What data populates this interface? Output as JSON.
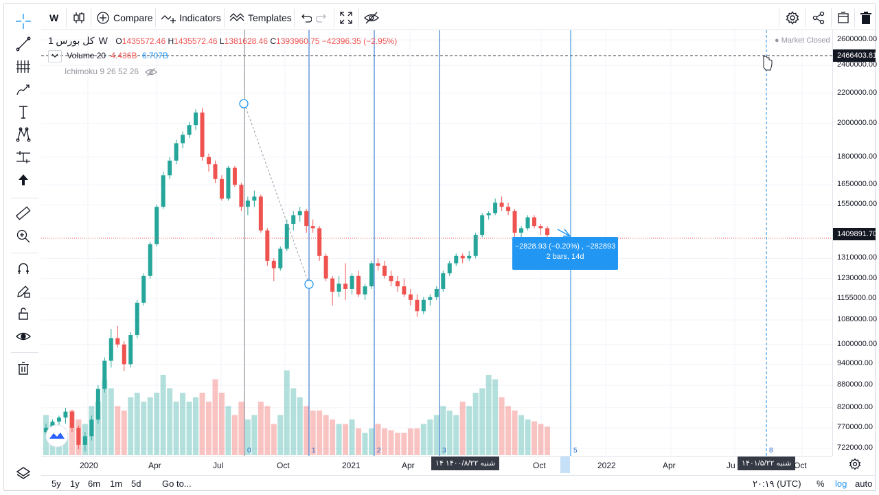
{
  "toolbar": {
    "interval": "W",
    "compare_label": "Compare",
    "indicators_label": "Indicators",
    "templates_label": "Templates"
  },
  "legend": {
    "symbol": "کل بورس",
    "interval": "1W",
    "open_label": "O",
    "open": "1435572.46",
    "high_label": "H",
    "high": "1435572.46",
    "low_label": "L",
    "low": "1381628.46",
    "close_label": "C",
    "close": "1393960.75",
    "change": "−42396.35 (−2.95%)",
    "volume_label": "Volume",
    "volume_len": "20",
    "volume_val": "4.436B",
    "volume_ma": "6.707B",
    "ichimoku": "Ichimoku 9 26 52 26",
    "market_status": "Market Closed"
  },
  "price_axis": {
    "labels": [
      "2600000.00",
      "2400000.00",
      "2200000.00",
      "2000000.00",
      "1800000.00",
      "1650000.00",
      "1550000.00",
      "1310000.00",
      "1230000.00",
      "1155000.00",
      "1080000.00",
      "1000000.00",
      "940000.00",
      "880000.00",
      "820000.00",
      "770000.00",
      "722000.00"
    ],
    "crosshair_price": "2466403.81",
    "last_price": "1409891.70"
  },
  "time_axis": {
    "labels": [
      "2020",
      "Apr",
      "Jul",
      "Oct",
      "2021",
      "Apr",
      "Oct",
      "2022",
      "Apr",
      "Ju",
      "Oct"
    ],
    "date_tag_1": "شنبه ۱۴۰۰/۸/۲۲ ۱۴",
    "date_tag_2": "شنبه ۱۴۰۱/۵/۲۲"
  },
  "cycle_lines": {
    "labels": [
      "0",
      "1",
      "2",
      "3",
      "5",
      "8"
    ]
  },
  "measure_tooltip": {
    "line1": "−2828.93 (−0.20%) , −282893",
    "line2": "2 bars, 14d"
  },
  "bottom_bar": {
    "ranges": [
      "5y",
      "1y",
      "6m",
      "1m",
      "5d"
    ],
    "goto": "Go to...",
    "time": "۲۰:۱۹ (UTC)",
    "percent": "%",
    "log": "log",
    "auto": "auto"
  },
  "colors": {
    "up": "#26a69a",
    "down": "#ef5350",
    "accent": "#2196f3"
  },
  "chart_data": {
    "type": "candlestick",
    "interval": "1W",
    "yscale": "log",
    "ylim": [
      700000,
      2650000
    ],
    "candles": [
      [
        760000,
        780000,
        750000,
        770000,
        0.45
      ],
      [
        770000,
        790000,
        760000,
        785000,
        0.35
      ],
      [
        785000,
        800000,
        770000,
        795000,
        0.3
      ],
      [
        795000,
        820000,
        780000,
        810000,
        0.25
      ],
      [
        810000,
        815000,
        760000,
        770000,
        0.5
      ],
      [
        770000,
        775000,
        720000,
        730000,
        0.4
      ],
      [
        730000,
        760000,
        715000,
        750000,
        0.35
      ],
      [
        750000,
        800000,
        740000,
        790000,
        0.55
      ],
      [
        790000,
        880000,
        780000,
        870000,
        0.6
      ],
      [
        870000,
        960000,
        860000,
        950000,
        0.85
      ],
      [
        950000,
        1050000,
        930000,
        1020000,
        0.75
      ],
      [
        1020000,
        1060000,
        990000,
        1000000,
        0.55
      ],
      [
        1000000,
        1010000,
        920000,
        940000,
        0.5
      ],
      [
        940000,
        1040000,
        930000,
        1030000,
        0.65
      ],
      [
        1030000,
        1150000,
        1020000,
        1140000,
        0.7
      ],
      [
        1140000,
        1250000,
        1130000,
        1240000,
        0.6
      ],
      [
        1240000,
        1380000,
        1230000,
        1370000,
        0.65
      ],
      [
        1370000,
        1550000,
        1360000,
        1540000,
        0.7
      ],
      [
        1540000,
        1720000,
        1530000,
        1700000,
        0.9
      ],
      [
        1700000,
        1800000,
        1680000,
        1780000,
        0.75
      ],
      [
        1780000,
        1900000,
        1760000,
        1880000,
        0.6
      ],
      [
        1880000,
        1950000,
        1850000,
        1930000,
        0.7
      ],
      [
        1930000,
        2010000,
        1910000,
        1990000,
        0.6
      ],
      [
        1990000,
        2090000,
        1960000,
        2070000,
        0.65
      ],
      [
        2070000,
        2100000,
        1780000,
        1800000,
        0.7
      ],
      [
        1800000,
        1820000,
        1720000,
        1760000,
        0.6
      ],
      [
        1760000,
        1780000,
        1660000,
        1680000,
        0.85
      ],
      [
        1680000,
        1700000,
        1570000,
        1580000,
        0.7
      ],
      [
        1580000,
        1750000,
        1570000,
        1740000,
        0.55
      ],
      [
        1740000,
        1750000,
        1640000,
        1650000,
        0.45
      ],
      [
        1650000,
        1660000,
        1520000,
        1540000,
        0.6
      ],
      [
        1540000,
        1590000,
        1500000,
        1570000,
        0.4
      ],
      [
        1570000,
        1620000,
        1540000,
        1590000,
        0.45
      ],
      [
        1590000,
        1600000,
        1420000,
        1430000,
        0.6
      ],
      [
        1430000,
        1440000,
        1280000,
        1300000,
        0.55
      ],
      [
        1300000,
        1310000,
        1220000,
        1270000,
        0.35
      ],
      [
        1270000,
        1360000,
        1260000,
        1350000,
        0.45
      ],
      [
        1350000,
        1480000,
        1340000,
        1460000,
        0.95
      ],
      [
        1460000,
        1520000,
        1430000,
        1500000,
        0.75
      ],
      [
        1500000,
        1540000,
        1470000,
        1520000,
        0.65
      ],
      [
        1520000,
        1530000,
        1420000,
        1450000,
        0.55
      ],
      [
        1450000,
        1480000,
        1420000,
        1440000,
        0.5
      ],
      [
        1440000,
        1450000,
        1300000,
        1320000,
        0.5
      ],
      [
        1320000,
        1330000,
        1220000,
        1230000,
        0.45
      ],
      [
        1230000,
        1240000,
        1130000,
        1180000,
        0.4
      ],
      [
        1180000,
        1240000,
        1160000,
        1210000,
        0.35
      ],
      [
        1210000,
        1290000,
        1150000,
        1190000,
        0.35
      ],
      [
        1190000,
        1250000,
        1170000,
        1240000,
        0.4
      ],
      [
        1240000,
        1260000,
        1160000,
        1170000,
        0.3
      ],
      [
        1170000,
        1210000,
        1150000,
        1200000,
        0.25
      ],
      [
        1200000,
        1300000,
        1190000,
        1290000,
        0.3
      ],
      [
        1290000,
        1310000,
        1260000,
        1280000,
        0.35
      ],
      [
        1280000,
        1300000,
        1230000,
        1240000,
        0.3
      ],
      [
        1240000,
        1260000,
        1200000,
        1220000,
        0.28
      ],
      [
        1220000,
        1240000,
        1180000,
        1200000,
        0.25
      ],
      [
        1200000,
        1230000,
        1160000,
        1170000,
        0.25
      ],
      [
        1170000,
        1190000,
        1130000,
        1150000,
        0.3
      ],
      [
        1150000,
        1170000,
        1090000,
        1110000,
        0.3
      ],
      [
        1110000,
        1160000,
        1100000,
        1150000,
        0.35
      ],
      [
        1150000,
        1170000,
        1130000,
        1160000,
        0.4
      ],
      [
        1160000,
        1200000,
        1150000,
        1190000,
        0.45
      ],
      [
        1190000,
        1260000,
        1180000,
        1250000,
        0.55
      ],
      [
        1250000,
        1300000,
        1240000,
        1290000,
        0.5
      ],
      [
        1290000,
        1330000,
        1280000,
        1320000,
        0.45
      ],
      [
        1320000,
        1330000,
        1290000,
        1310000,
        0.6
      ],
      [
        1310000,
        1340000,
        1300000,
        1320000,
        0.55
      ],
      [
        1320000,
        1420000,
        1310000,
        1410000,
        0.7
      ],
      [
        1410000,
        1510000,
        1400000,
        1500000,
        0.75
      ],
      [
        1500000,
        1520000,
        1480000,
        1510000,
        0.9
      ],
      [
        1510000,
        1580000,
        1500000,
        1560000,
        0.85
      ],
      [
        1560000,
        1590000,
        1520000,
        1540000,
        0.65
      ],
      [
        1540000,
        1560000,
        1500000,
        1520000,
        0.55
      ],
      [
        1520000,
        1530000,
        1400000,
        1420000,
        0.5
      ],
      [
        1420000,
        1450000,
        1400000,
        1440000,
        0.45
      ],
      [
        1440000,
        1500000,
        1430000,
        1490000,
        0.4
      ],
      [
        1490000,
        1500000,
        1440000,
        1450000,
        0.38
      ],
      [
        1450000,
        1460000,
        1410000,
        1440000,
        0.35
      ],
      [
        1440000,
        1450000,
        1390000,
        1409891,
        0.32
      ]
    ],
    "cycle_line_labels": [
      "0",
      "1",
      "2",
      "3",
      "5",
      "8"
    ]
  }
}
